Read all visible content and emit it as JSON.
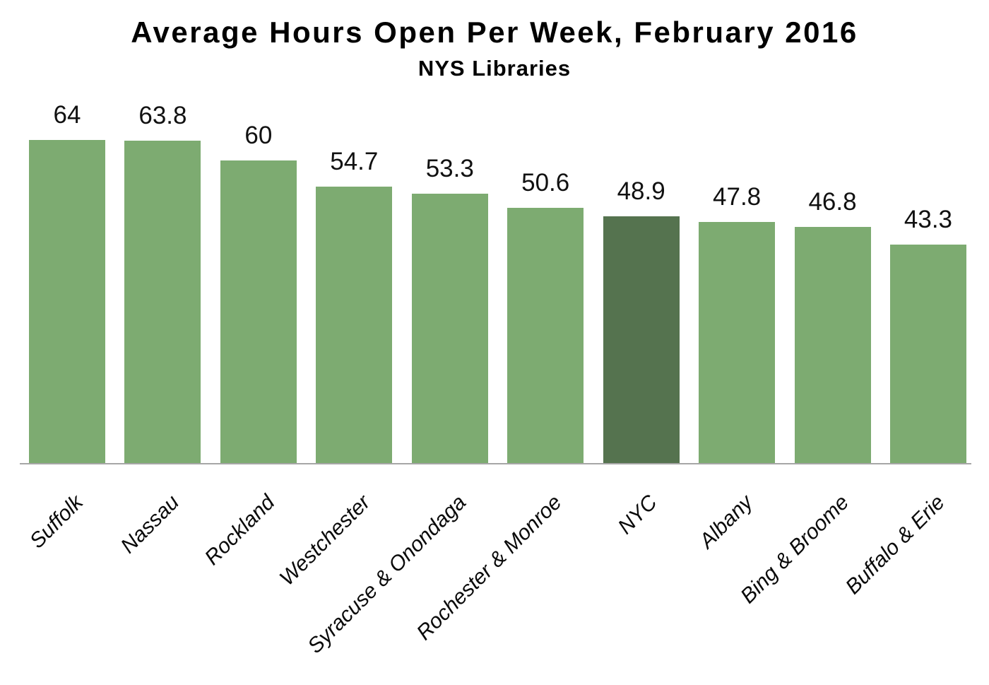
{
  "chart_data": {
    "type": "bar",
    "title": "Average Hours Open Per Week, February 2016",
    "subtitle": "NYS Libraries",
    "categories": [
      "Suffolk",
      "Nassau",
      "Rockland",
      "Westchester",
      "Syracuse & Onondaga",
      "Rochester & Monroe",
      "NYC",
      "Albany",
      "Bing & Broome",
      "Buffalo & Erie"
    ],
    "values": [
      64,
      63.8,
      60,
      54.7,
      53.3,
      50.6,
      48.9,
      47.8,
      46.8,
      43.3
    ],
    "data_labels": [
      "64",
      "63.8",
      "60",
      "54.7",
      "53.3",
      "50.6",
      "48.9",
      "47.8",
      "46.8",
      "43.3"
    ],
    "xlabel": "",
    "ylabel": "",
    "ylim": [
      0,
      64
    ],
    "grid": false,
    "legend": false,
    "x_tick_rotation_deg": 45,
    "highlight_index": 6,
    "colors": {
      "bar": "#7DAB71",
      "highlight_bar": "#55734F",
      "axis_line": "#a6a6a6",
      "text": "#000000"
    }
  }
}
